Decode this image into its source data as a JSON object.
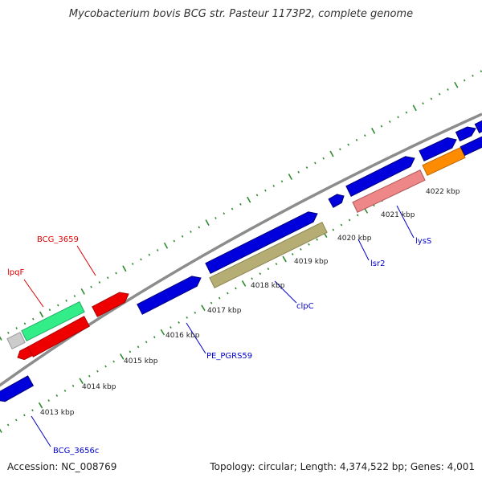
{
  "title": "Mycobacterium bovis BCG str. Pasteur 1173P2, complete genome",
  "footer": {
    "accession": "Accession: NC_008769",
    "topology": "Topology: circular; Length: 4,374,522 bp; Genes: 4,001"
  },
  "colors": {
    "backbone": "#8c8c8c",
    "tick_ruler": "#2e8b2e",
    "blue_gene": "#0000dd",
    "red_gene": "#ee0000",
    "green_gene": "#33ee88",
    "gray_gene": "#cccccc",
    "olive_gene": "#b5ad74",
    "pink_gene": "#ee8888",
    "orange_gene": "#ff8c00",
    "label_red": "#dd0000",
    "label_blue": "#0000cc"
  },
  "scale_ticks": [
    {
      "label": "4013 kbp"
    },
    {
      "label": "4014 kbp"
    },
    {
      "label": "4015 kbp"
    },
    {
      "label": "4016 kbp"
    },
    {
      "label": "4017 kbp"
    },
    {
      "label": "4018 kbp"
    },
    {
      "label": "4019 kbp"
    },
    {
      "label": "4020 kbp"
    },
    {
      "label": "4021 kbp"
    },
    {
      "label": "4022 kbp"
    }
  ],
  "gene_labels": [
    {
      "text": "BCG_3659",
      "color": "label_red"
    },
    {
      "text": "lpqF",
      "color": "label_red"
    },
    {
      "text": "PE_PGRS59",
      "color": "label_blue"
    },
    {
      "text": "clpC",
      "color": "label_blue"
    },
    {
      "text": "lsr2",
      "color": "label_blue"
    },
    {
      "text": "lysS",
      "color": "label_blue"
    },
    {
      "text": "BCG_3656c",
      "color": "label_blue"
    }
  ]
}
